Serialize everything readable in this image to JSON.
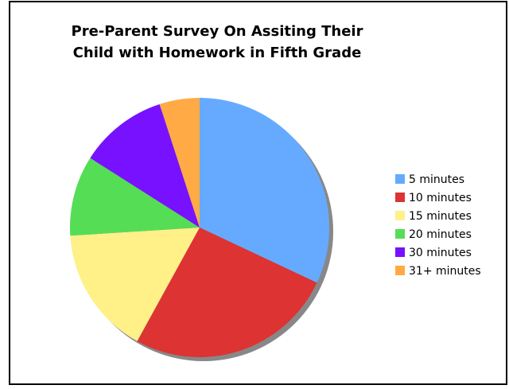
{
  "chart_data": {
    "type": "pie",
    "title": [
      "Pre-Parent Survey On Assiting Their",
      "Child with Homework in Fifth Grade"
    ],
    "categories": [
      "5 minutes",
      "10 minutes",
      "15 minutes",
      "20 minutes",
      "30 minutes",
      "31+ minutes"
    ],
    "values": [
      32,
      26,
      16,
      10,
      11,
      5
    ],
    "colors": [
      "#66aaff",
      "#dd3333",
      "#fff088",
      "#55dd55",
      "#7711ff",
      "#ffaa44"
    ],
    "legend": "right"
  }
}
